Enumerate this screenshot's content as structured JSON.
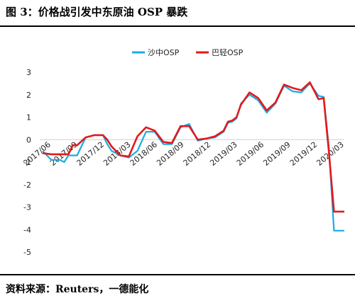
{
  "title": "图 3：价格战引发中东原油 OSP 暴跌",
  "source": "资料来源：Reuters，一德能化",
  "chart_data": {
    "type": "line",
    "title": "",
    "xlabel": "",
    "ylabel": "",
    "ylim": [
      -5,
      3
    ],
    "yticks": [
      3,
      2,
      1,
      0,
      -1,
      -2,
      -3,
      -4,
      -5
    ],
    "x_tick_labels": [
      "2017/06",
      "2017/09",
      "2017/12",
      "2018/03",
      "2018/06",
      "2018/09",
      "2018/12",
      "2019/03",
      "2019/06",
      "2019/09",
      "2019/12",
      "2020/03"
    ],
    "grid": false,
    "legend_position": "top-center",
    "x_range": [
      0,
      35
    ],
    "series": [
      {
        "name": "沙中OSP",
        "color": "#1aace3",
        "points": [
          [
            0,
            -0.5
          ],
          [
            1,
            -0.9
          ],
          [
            2,
            -0.9
          ],
          [
            2.5,
            -1
          ],
          [
            3,
            -0.7
          ],
          [
            4,
            -0.7
          ],
          [
            5,
            0.1
          ],
          [
            6,
            0.2
          ],
          [
            7,
            0.2
          ],
          [
            7.5,
            -0.2
          ],
          [
            8,
            -0.5
          ],
          [
            9,
            -0.7
          ],
          [
            10,
            -0.8
          ],
          [
            11,
            -0.5
          ],
          [
            12,
            0.35
          ],
          [
            13,
            0.35
          ],
          [
            14,
            -0.2
          ],
          [
            15,
            -0.2
          ],
          [
            16,
            0.55
          ],
          [
            17,
            0.7
          ],
          [
            18,
            -0.05
          ],
          [
            19,
            0.05
          ],
          [
            20,
            0.1
          ],
          [
            21,
            0.35
          ],
          [
            21.5,
            0.75
          ],
          [
            22,
            0.8
          ],
          [
            22.5,
            0.95
          ],
          [
            23,
            1.6
          ],
          [
            24,
            2.0
          ],
          [
            25,
            1.75
          ],
          [
            26,
            1.2
          ],
          [
            27,
            1.6
          ],
          [
            28,
            2.4
          ],
          [
            29,
            2.15
          ],
          [
            30,
            2.1
          ],
          [
            31,
            2.5
          ],
          [
            32,
            1.95
          ],
          [
            32.6,
            1.9
          ],
          [
            33.2,
            -0.3
          ],
          [
            33.8,
            -4.05
          ],
          [
            35,
            -4.05
          ]
        ]
      },
      {
        "name": "巴轻OSP",
        "color": "#e3191c",
        "points": [
          [
            0,
            -0.6
          ],
          [
            1,
            -0.65
          ],
          [
            2,
            -0.65
          ],
          [
            3,
            -0.65
          ],
          [
            3.5,
            -0.25
          ],
          [
            4,
            -0.25
          ],
          [
            5,
            0.1
          ],
          [
            6,
            0.2
          ],
          [
            7,
            0.2
          ],
          [
            7.5,
            0
          ],
          [
            8,
            -0.3
          ],
          [
            9,
            -0.7
          ],
          [
            10,
            -0.75
          ],
          [
            11,
            0.15
          ],
          [
            12,
            0.55
          ],
          [
            13,
            0.4
          ],
          [
            14,
            -0.1
          ],
          [
            15,
            -0.15
          ],
          [
            16,
            0.6
          ],
          [
            17,
            0.6
          ],
          [
            18,
            0
          ],
          [
            19,
            0.05
          ],
          [
            20,
            0.15
          ],
          [
            21,
            0.4
          ],
          [
            21.5,
            0.8
          ],
          [
            22,
            0.85
          ],
          [
            22.5,
            1.0
          ],
          [
            23,
            1.55
          ],
          [
            24,
            2.1
          ],
          [
            25,
            1.85
          ],
          [
            26,
            1.3
          ],
          [
            27,
            1.65
          ],
          [
            28,
            2.45
          ],
          [
            29,
            2.3
          ],
          [
            30,
            2.2
          ],
          [
            31,
            2.55
          ],
          [
            32,
            1.8
          ],
          [
            32.6,
            1.85
          ],
          [
            33.2,
            -0.5
          ],
          [
            33.8,
            -3.2
          ],
          [
            35,
            -3.2
          ]
        ]
      }
    ]
  }
}
